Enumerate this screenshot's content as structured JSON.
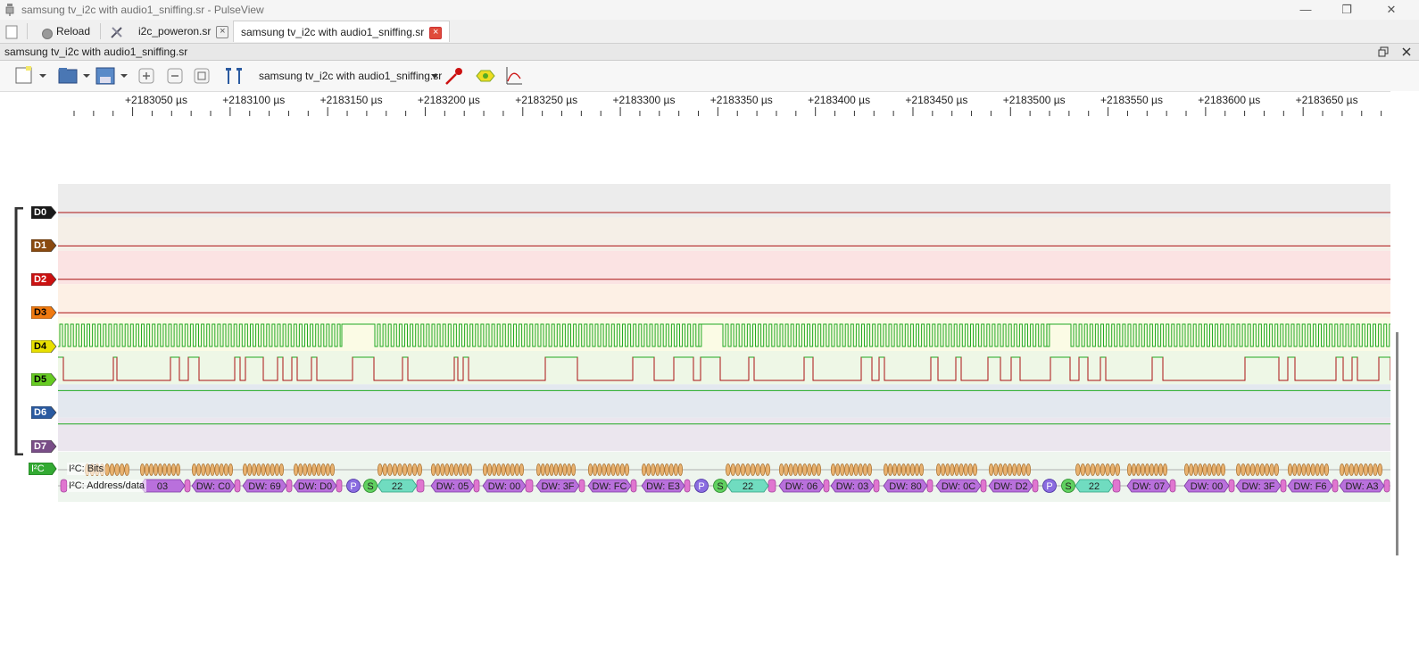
{
  "window": {
    "title": "samsung tv_i2c with audio1_sniffing.sr - PulseView",
    "minimize": "—",
    "restore": "❐",
    "close": "✕"
  },
  "tabbar": {
    "reload_label": "Reload",
    "tabs": [
      {
        "label": "i2c_poweron.sr",
        "active": false
      },
      {
        "label": "samsung tv_i2c with audio1_sniffing.sr",
        "active": true
      }
    ]
  },
  "document": {
    "title": "samsung tv_i2c with audio1_sniffing.sr"
  },
  "toolbar": {
    "session_label": "samsung tv_i2c with audio1_sniffing.sr"
  },
  "ruler": {
    "labels": [
      "+2183050 µs",
      "+2183100 µs",
      "+2183150 µs",
      "+2183200 µs",
      "+2183250 µs",
      "+2183300 µs",
      "+2183350 µs",
      "+2183400 µs",
      "+2183450 µs",
      "+2183500 µs",
      "+2183550 µs",
      "+2183600 µs",
      "+2183650 µs"
    ]
  },
  "channels": [
    {
      "name": "D0",
      "color": "#1a1a1a",
      "text": "#fff",
      "bg": "#ececec"
    },
    {
      "name": "D1",
      "color": "#8a4a10",
      "text": "#fff",
      "bg": "#f5efe7"
    },
    {
      "name": "D2",
      "color": "#cc1111",
      "text": "#fff",
      "bg": "#fbe3e3"
    },
    {
      "name": "D3",
      "color": "#f07a10",
      "text": "#000",
      "bg": "#fdf0e5"
    },
    {
      "name": "D4",
      "color": "#e8e000",
      "text": "#000",
      "bg": "#fbfbe5"
    },
    {
      "name": "D5",
      "color": "#66cc22",
      "text": "#000",
      "bg": "#eef7e6"
    },
    {
      "name": "D6",
      "color": "#2a5aa0",
      "text": "#fff",
      "bg": "#e3e8ef"
    },
    {
      "name": "D7",
      "color": "#7a4e88",
      "text": "#fff",
      "bg": "#ebe6ee"
    }
  ],
  "decoder": {
    "name": "I²C",
    "color": "#33aa33",
    "rows": [
      {
        "label": "I²C: Bits"
      },
      {
        "label": "I²C: Address/data"
      }
    ],
    "annotations": [
      {
        "type": "data",
        "text": "03"
      },
      {
        "type": "data",
        "text": "DW: C0"
      },
      {
        "type": "data",
        "text": "DW: 69"
      },
      {
        "type": "data",
        "text": "DW: D0"
      },
      {
        "type": "stop",
        "text": "P"
      },
      {
        "type": "start",
        "text": "S"
      },
      {
        "type": "addr",
        "text": "22"
      },
      {
        "type": "data",
        "text": "DW: 05"
      },
      {
        "type": "data",
        "text": "DW: 00"
      },
      {
        "type": "data",
        "text": "DW: 3F"
      },
      {
        "type": "data",
        "text": "DW: FC"
      },
      {
        "type": "data",
        "text": "DW: E3"
      },
      {
        "type": "stop",
        "text": "P"
      },
      {
        "type": "start",
        "text": "S"
      },
      {
        "type": "addr",
        "text": "22"
      },
      {
        "type": "data",
        "text": "DW: 06"
      },
      {
        "type": "data",
        "text": "DW: 03"
      },
      {
        "type": "data",
        "text": "DW: 80"
      },
      {
        "type": "data",
        "text": "DW: 0C"
      },
      {
        "type": "data",
        "text": "DW: D2"
      },
      {
        "type": "stop",
        "text": "P"
      },
      {
        "type": "start",
        "text": "S"
      },
      {
        "type": "addr",
        "text": "22"
      },
      {
        "type": "data",
        "text": "DW: 07"
      },
      {
        "type": "data",
        "text": "DW: 00"
      },
      {
        "type": "data",
        "text": "DW: 3F"
      },
      {
        "type": "data",
        "text": "DW: F6"
      },
      {
        "type": "data",
        "text": "DW: A3"
      }
    ]
  }
}
